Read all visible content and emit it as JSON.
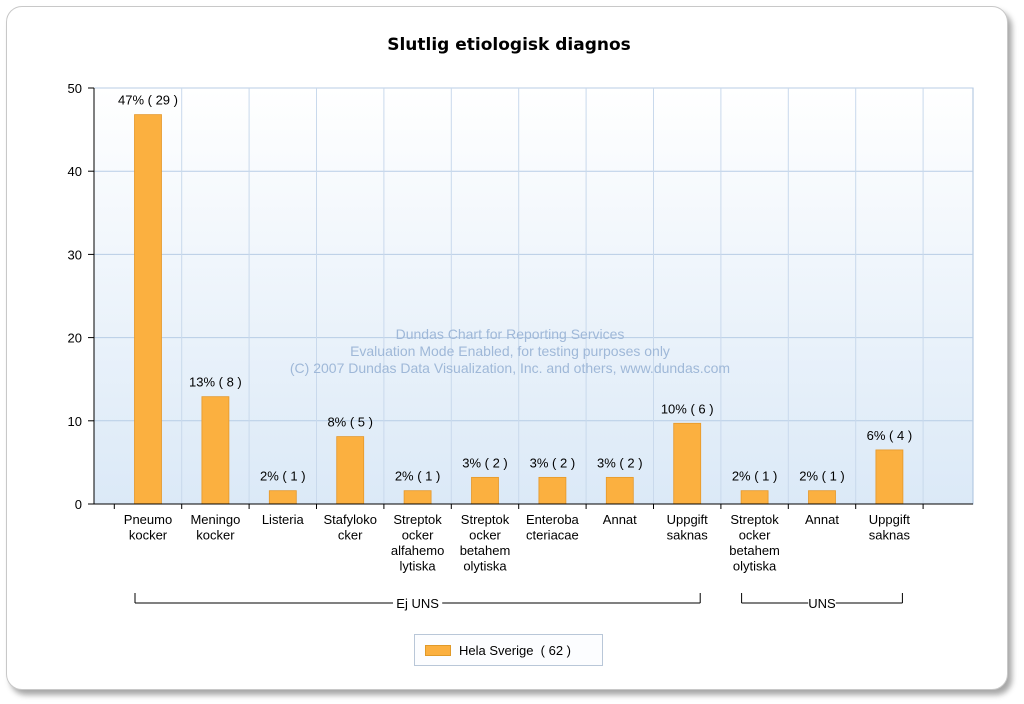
{
  "chart_data": {
    "type": "bar",
    "title": "Slutlig etiologisk diagnos",
    "xlabel": "",
    "ylabel": "",
    "ylim": [
      0,
      50
    ],
    "yticks": [
      0,
      10,
      20,
      30,
      40,
      50
    ],
    "grid": true,
    "categories": [
      [
        "Pneumo",
        "kocker"
      ],
      [
        "Meningo",
        "kocker"
      ],
      [
        "Listeria"
      ],
      [
        "Stafyloko",
        "cker"
      ],
      [
        "Streptok",
        "ocker",
        "alfahemo",
        "lytiska"
      ],
      [
        "Streptok",
        "ocker",
        "betahem",
        "olytiska"
      ],
      [
        "Enteroba",
        "cteriacae"
      ],
      [
        "Annat"
      ],
      [
        "Uppgift",
        "saknas"
      ],
      [
        "Streptok",
        "ocker",
        "betahem",
        "olytiska"
      ],
      [
        "Annat"
      ],
      [
        "Uppgift",
        "saknas"
      ]
    ],
    "groups": [
      {
        "label": "Ej UNS",
        "from": 0,
        "to": 8
      },
      {
        "label": "UNS",
        "from": 9,
        "to": 11
      }
    ],
    "series": [
      {
        "name": "Hela Sverige  ( 62 )",
        "color": "#fbb040",
        "values": [
          46.8,
          12.9,
          1.6,
          8.1,
          1.6,
          3.2,
          3.2,
          3.2,
          9.7,
          1.6,
          1.6,
          6.5
        ],
        "labels": [
          "47% ( 29 )",
          "13% ( 8 )",
          "2% ( 1 )",
          "8% ( 5 )",
          "2% ( 1 )",
          "3% ( 2 )",
          "3% ( 2 )",
          "3% ( 2 )",
          "10% ( 6 )",
          "2% ( 1 )",
          "2% ( 1 )",
          "6% ( 4 )"
        ]
      }
    ],
    "legend_position": "bottom",
    "watermark": [
      "Dundas Chart for Reporting Services",
      "Evaluation Mode Enabled, for testing purposes only",
      "(C) 2007 Dundas Data Visualization, Inc. and others, www.dundas.com"
    ]
  }
}
